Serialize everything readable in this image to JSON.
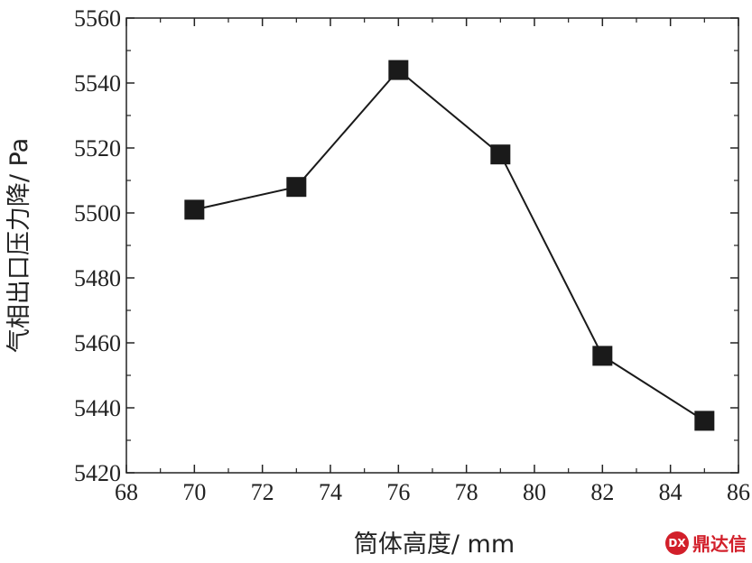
{
  "chart_data": {
    "type": "line",
    "title": "",
    "xlabel": "筒体高度/ mm",
    "ylabel": "气相出口压力降/ Pa",
    "xlim": [
      68,
      86
    ],
    "ylim": [
      5420,
      5560
    ],
    "x_ticks": [
      "68",
      "70",
      "72",
      "74",
      "76",
      "78",
      "80",
      "82",
      "84",
      "86"
    ],
    "y_ticks": [
      "5420",
      "5440",
      "5460",
      "5480",
      "5500",
      "5520",
      "5540",
      "5560"
    ],
    "series": [
      {
        "x": [
          70,
          73,
          76,
          79,
          82,
          85
        ],
        "y": [
          5501,
          5508,
          5544,
          5518,
          5456,
          5436
        ],
        "marker": "square",
        "color": "#1a1a1a"
      }
    ],
    "grid": false,
    "legend": "none"
  },
  "watermark": {
    "logo_text": "DX",
    "text": "鼎达信",
    "color": "#d21f2a"
  }
}
